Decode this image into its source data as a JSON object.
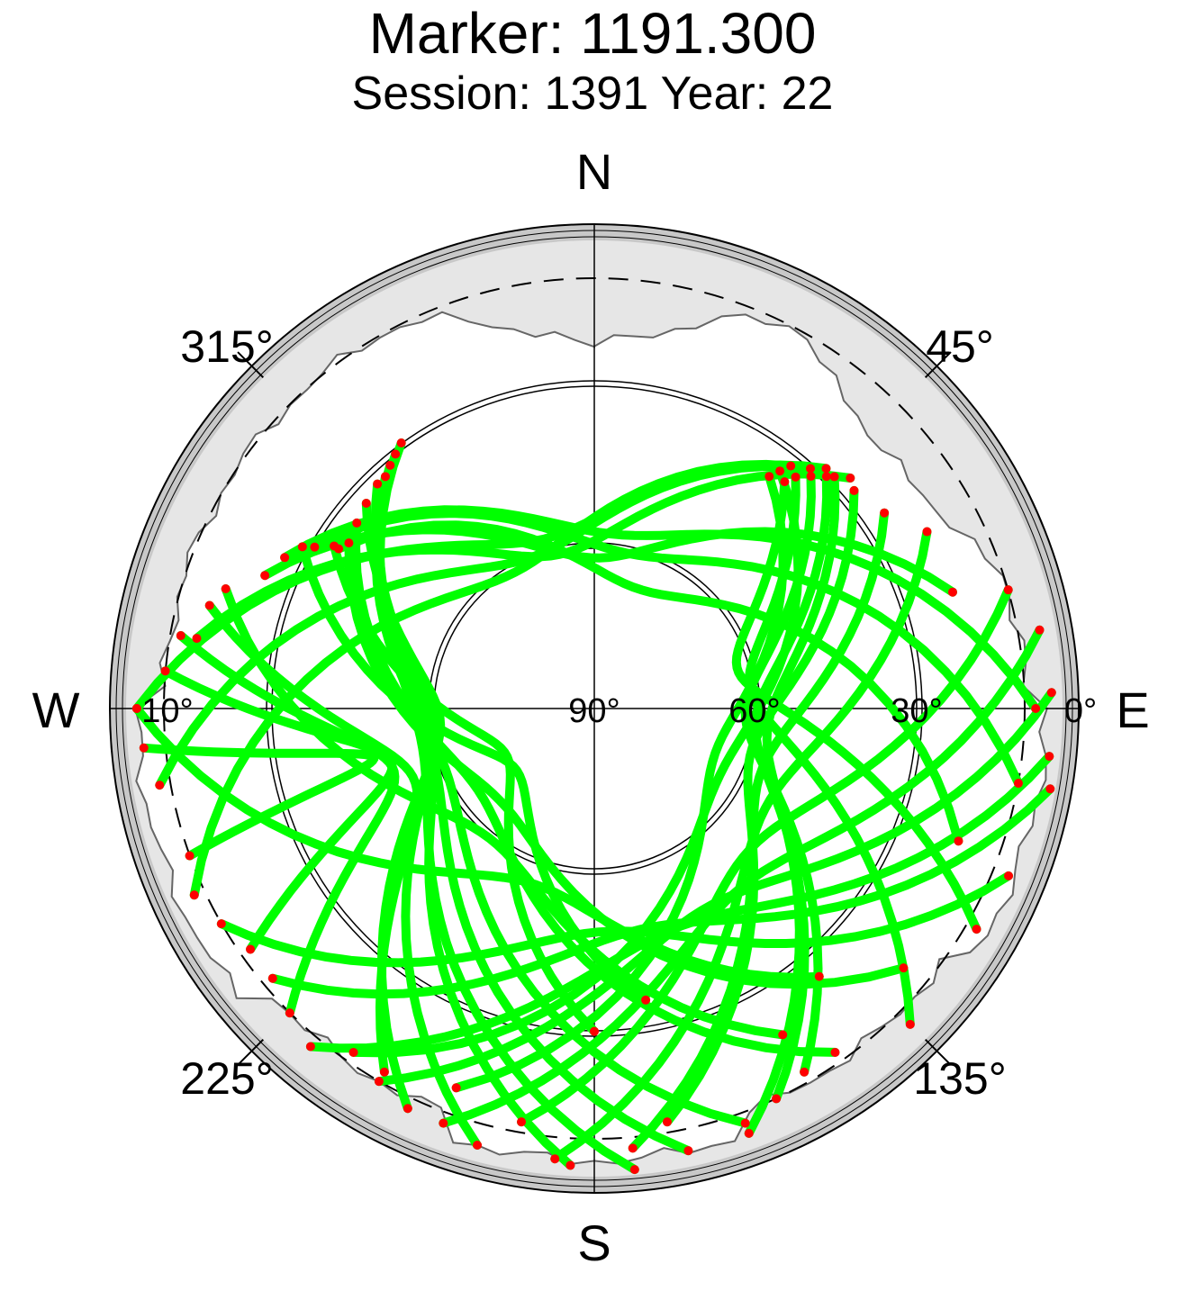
{
  "title": "Marker: 1191.300",
  "subtitle": "Session: 1391 Year: 22",
  "colors": {
    "track": "#00ff00",
    "endpoint": "#ff0000",
    "horizon_band": "#c8c8c8",
    "mask_fill": "#e6e6e6",
    "background": "#ffffff"
  },
  "chart_data": {
    "type": "scatter",
    "projection": "polar-azimuth-elevation",
    "compass": {
      "north": "N",
      "east": "E",
      "south": "S",
      "west": "W"
    },
    "azimuth_tick_labels": [
      "45°",
      "135°",
      "225°",
      "315°"
    ],
    "elevation_tick_labels": [
      "0°",
      "30°",
      "60°",
      "90°",
      "10°"
    ],
    "elevation_circles_deg": [
      30,
      60
    ],
    "elevation_cutoff_deg": 10,
    "tracks": [
      {
        "start": [
          40,
          35
        ],
        "end": [
          120,
          8
        ]
      },
      {
        "start": [
          41,
          33
        ],
        "end": [
          135,
          7
        ]
      },
      {
        "start": [
          43,
          31
        ],
        "end": [
          150,
          12
        ]
      },
      {
        "start": [
          45,
          29
        ],
        "end": [
          155,
          10
        ]
      },
      {
        "start": [
          46,
          28
        ],
        "end": [
          160,
          6
        ]
      },
      {
        "start": [
          50,
          27
        ],
        "end": [
          170,
          12
        ]
      },
      {
        "start": [
          56,
          25
        ],
        "end": [
          175,
          8
        ]
      },
      {
        "start": [
          62,
          20
        ],
        "end": [
          185,
          6
        ]
      },
      {
        "start": [
          74,
          10
        ],
        "end": [
          190,
          12
        ]
      },
      {
        "start": [
          80,
          6
        ],
        "end": [
          200,
          8
        ]
      },
      {
        "start": [
          88,
          5
        ],
        "end": [
          210,
          10
        ]
      },
      {
        "start": [
          96,
          5
        ],
        "end": [
          220,
          8
        ]
      },
      {
        "start": [
          100,
          4
        ],
        "end": [
          230,
          12
        ]
      },
      {
        "start": [
          112,
          7
        ],
        "end": [
          240,
          10
        ]
      },
      {
        "start": [
          37,
          36
        ],
        "end": [
          200,
          15
        ]
      },
      {
        "start": [
          38,
          34
        ],
        "end": [
          215,
          12
        ]
      },
      {
        "start": [
          39,
          32
        ],
        "end": [
          245,
          8
        ]
      },
      {
        "start": [
          42,
          30
        ],
        "end": [
          260,
          8
        ]
      },
      {
        "start": [
          44,
          28
        ],
        "end": [
          270,
          5
        ]
      },
      {
        "start": [
          48,
          26
        ],
        "end": [
          280,
          15
        ]
      },
      {
        "start": [
          324,
          29
        ],
        "end": [
          175,
          4
        ]
      },
      {
        "start": [
          322,
          30
        ],
        "end": [
          168,
          6
        ]
      },
      {
        "start": [
          320,
          31
        ],
        "end": [
          160,
          8
        ]
      },
      {
        "start": [
          318,
          32
        ],
        "end": [
          183,
          5
        ]
      },
      {
        "start": [
          316,
          32
        ],
        "end": [
          195,
          6
        ]
      },
      {
        "start": [
          312,
          33
        ],
        "end": [
          205,
          8
        ]
      },
      {
        "start": [
          308,
          34
        ],
        "end": [
          145,
          12
        ]
      },
      {
        "start": [
          304,
          35
        ],
        "end": [
          130,
          15
        ]
      },
      {
        "start": [
          302,
          34
        ],
        "end": [
          110,
          18
        ]
      },
      {
        "start": [
          300,
          30
        ],
        "end": [
          100,
          10
        ]
      },
      {
        "start": [
          296,
          26
        ],
        "end": [
          90,
          8
        ]
      },
      {
        "start": [
          292,
          24
        ],
        "end": [
          72,
          20
        ]
      },
      {
        "start": [
          288,
          18
        ],
        "end": [
          150,
          20
        ]
      },
      {
        "start": [
          285,
          16
        ],
        "end": [
          210,
          12
        ]
      },
      {
        "start": [
          280,
          12
        ],
        "end": [
          225,
          10
        ]
      },
      {
        "start": [
          275,
          10
        ],
        "end": [
          235,
          12
        ]
      },
      {
        "start": [
          270,
          5
        ],
        "end": [
          140,
          25
        ]
      },
      {
        "start": [
          265,
          6
        ],
        "end": [
          250,
          10
        ]
      },
      {
        "start": [
          302,
          33
        ],
        "end": [
          180,
          30
        ]
      },
      {
        "start": [
          299,
          28
        ],
        "end": [
          170,
          35
        ]
      }
    ]
  }
}
